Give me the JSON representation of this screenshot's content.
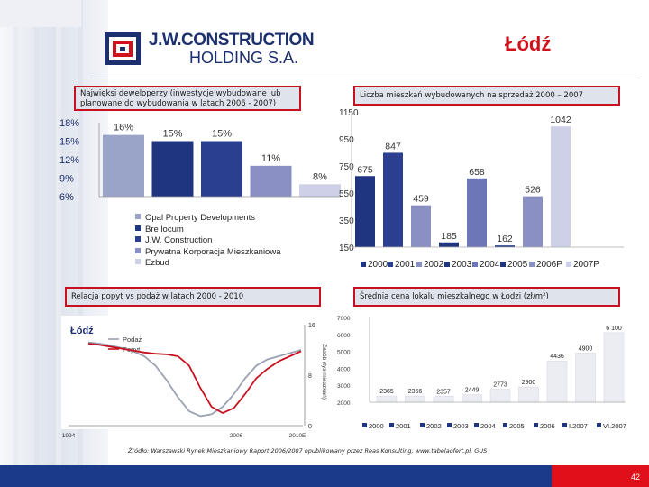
{
  "header": {
    "brand_line1": "J.W.CONSTRUCTION",
    "brand_line2": "HOLDING S.A.",
    "city": "Łódź",
    "accent_color": "#d0101a",
    "brand_color": "#1c2f6e"
  },
  "boxes": {
    "box1": "Najwięksi deweloperzy (inwestycje wybudowane lub planowane do wybudowania w latach 2006 - 2007)",
    "box2": "Liczba mieszkań wybudowanych na sprzedaż 2000 – 2007",
    "box3": "Relacja popyt vs podaż w latach 2000 - 2010",
    "box4": "Średnia cena lokalu mieszkalnego w Łodzi (zł/m²)"
  },
  "source": "Źródło: Warszawski Rynek Mieszkaniowy Raport 2006/2007 opublikowany przez Reas Konsulting, www.tabelaofert.pl, GUS",
  "page_number": "42",
  "chart_data": [
    {
      "type": "bar",
      "title": "Najwięksi deweloperzy",
      "categories": [
        "Opal Property Developments",
        "Bre locum",
        "J.W. Construction",
        "Prywatna Korporacja Mieszkaniowa",
        "Ezbud"
      ],
      "values": [
        16,
        15,
        15,
        11,
        8
      ],
      "value_labels": [
        "16%",
        "15%",
        "15%",
        "11%",
        "8%"
      ],
      "colors": [
        "#9aa4c8",
        "#1f3580",
        "#2b3f90",
        "#8a90c4",
        "#cdd0e6"
      ],
      "yticks": [
        "18%",
        "15%",
        "12%",
        "9%",
        "6%"
      ],
      "ylim": [
        6,
        18
      ]
    },
    {
      "type": "bar",
      "title": "Liczba mieszkań wybudowanych na sprzedaż 2000 – 2007",
      "categories": [
        "2000",
        "2001",
        "2002",
        "2003",
        "2004",
        "2005",
        "2006P",
        "2007P"
      ],
      "values": [
        675,
        847,
        459,
        185,
        658,
        162,
        526,
        1042
      ],
      "yticks": [
        "1150",
        "950",
        "750",
        "550",
        "350",
        "150"
      ],
      "ylim": [
        150,
        1150
      ],
      "colors": [
        "#1f3580",
        "#2b3f90",
        "#8a90c4",
        "#1f3580",
        "#6d77b8",
        "#1f3580",
        "#8a90c4",
        "#cdd0e6"
      ]
    },
    {
      "type": "line",
      "title": "Relacja popyt vs podaż w latach 2000 - 2010",
      "inner_title": "Łódź",
      "series": [
        {
          "name": "Podaż",
          "color": "#9ba0b2",
          "values": [
            13.2,
            13.0,
            12.7,
            12.3,
            11.8,
            11.0,
            9.5,
            7.2,
            4.5,
            2.3,
            1.5,
            1.8,
            3.0,
            5.0,
            7.5,
            9.5,
            10.5,
            11.0,
            11.5,
            12.0
          ]
        },
        {
          "name": "Popyt",
          "color": "#c8101e",
          "values": [
            13.0,
            12.8,
            12.5,
            12.2,
            11.9,
            11.6,
            11.4,
            11.3,
            11.0,
            9.5,
            6.0,
            3.0,
            2.0,
            2.8,
            5.0,
            7.5,
            9.0,
            10.2,
            11.0,
            11.8
          ]
        }
      ],
      "xticks": [
        "1994",
        "2006",
        "2010E"
      ],
      "yticks_right": [
        "16",
        "8",
        "0"
      ],
      "ylabel_right": "Zasób (tys mieszkań)",
      "ylim": [
        0,
        16
      ]
    },
    {
      "type": "bar",
      "title": "Średnia cena lokalu mieszkalnego w Łodzi (zł/m²)",
      "categories": [
        "2000",
        "2001",
        "2002",
        "2003",
        "2004",
        "2005",
        "2006",
        "I.2007",
        "VI.2007"
      ],
      "values": [
        2365,
        2366,
        2357,
        2449,
        2773,
        2900,
        4436,
        4900,
        6100
      ],
      "value_labels": [
        "2365",
        "2366",
        "2357",
        "2449",
        "2773",
        "2900",
        "4436",
        "4900",
        "6 100"
      ],
      "yticks": [
        "7000",
        "6000",
        "5000",
        "4000",
        "3000",
        "2000"
      ],
      "ylim": [
        2000,
        7000
      ],
      "color": "#ecedf3"
    }
  ]
}
